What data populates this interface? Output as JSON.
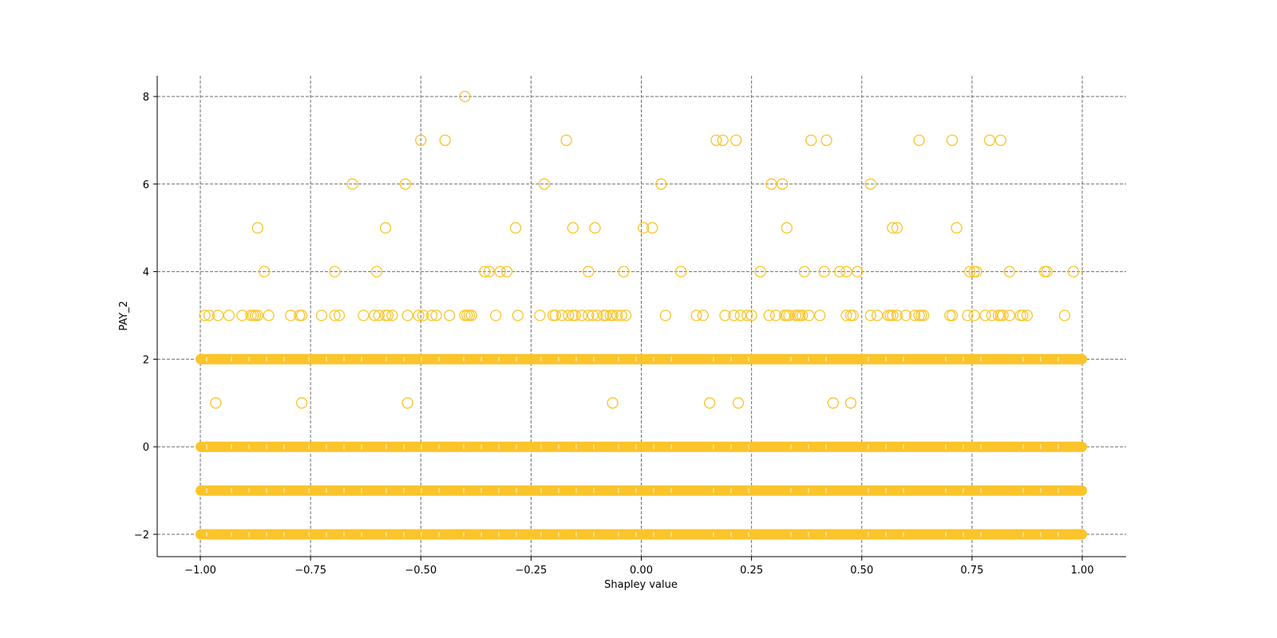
{
  "chart_data": {
    "type": "scatter",
    "title": "",
    "xlabel": "Shapley value",
    "ylabel": "PAY_2",
    "xlim": [
      -1.1,
      1.1
    ],
    "ylim": [
      -2.5,
      8.5
    ],
    "xticks": [
      -1.0,
      -0.75,
      -0.5,
      -0.25,
      0.0,
      0.25,
      0.5,
      0.75,
      1.0
    ],
    "xtick_labels": [
      "−1.00",
      "−0.75",
      "−0.50",
      "−0.25",
      "0.00",
      "0.25",
      "0.50",
      "0.75",
      "1.00"
    ],
    "yticks": [
      -2,
      0,
      2,
      4,
      6,
      8
    ],
    "ytick_labels": [
      "−2",
      "0",
      "2",
      "4",
      "6",
      "8"
    ],
    "grid": true,
    "grid_style": "dashed",
    "legend": null,
    "marker": {
      "shape": "hollow-circle",
      "color": "#FBC42A",
      "size": 14
    },
    "dense_bands": [
      {
        "y": -2,
        "x_range": [
          -1.0,
          1.0
        ],
        "note": "dense continuous band of points"
      },
      {
        "y": -1,
        "x_range": [
          -1.0,
          1.0
        ],
        "note": "dense continuous band of points"
      },
      {
        "y": 0,
        "x_range": [
          -1.0,
          1.0
        ],
        "note": "dense continuous band of points"
      },
      {
        "y": 2,
        "x_range": [
          -1.0,
          1.0
        ],
        "note": "dense continuous band of points"
      }
    ],
    "points": {
      "y8": [
        -0.4
      ],
      "y7": [
        -0.5,
        -0.445,
        -0.17,
        0.17,
        0.185,
        0.215,
        0.385,
        0.42,
        0.63,
        0.705,
        0.79,
        0.815
      ],
      "y6": [
        -0.655,
        -0.535,
        -0.22,
        0.045,
        0.295,
        0.32,
        0.52
      ],
      "y5": [
        -0.87,
        -0.58,
        -0.285,
        -0.155,
        -0.105,
        0.005,
        0.025,
        0.33,
        0.57,
        0.58,
        0.715
      ],
      "y4": [
        -0.855,
        -0.695,
        -0.6,
        -0.355,
        -0.345,
        -0.32,
        -0.305,
        -0.12,
        -0.04,
        0.09,
        0.27,
        0.37,
        0.415,
        0.45,
        0.465,
        0.49,
        0.745,
        0.755,
        0.76,
        0.835,
        0.915,
        0.92,
        0.98
      ],
      "y3": [
        -0.99,
        -0.98,
        -0.96,
        -0.935,
        -0.905,
        -0.885,
        -0.88,
        -0.875,
        -0.87,
        -0.845,
        -0.795,
        -0.775,
        -0.77,
        -0.725,
        -0.695,
        -0.685,
        -0.63,
        -0.605,
        -0.595,
        -0.58,
        -0.575,
        -0.565,
        -0.53,
        -0.505,
        -0.495,
        -0.475,
        -0.465,
        -0.435,
        -0.4,
        -0.395,
        -0.39,
        -0.385,
        -0.33,
        -0.28,
        -0.23,
        -0.2,
        -0.195,
        -0.18,
        -0.165,
        -0.155,
        -0.15,
        -0.135,
        -0.12,
        -0.11,
        -0.1,
        -0.085,
        -0.08,
        -0.07,
        -0.065,
        -0.055,
        -0.045,
        -0.035,
        0.055,
        0.125,
        0.14,
        0.19,
        0.21,
        0.225,
        0.24,
        0.25,
        0.29,
        0.305,
        0.325,
        0.33,
        0.335,
        0.35,
        0.355,
        0.36,
        0.365,
        0.38,
        0.405,
        0.465,
        0.475,
        0.48,
        0.52,
        0.535,
        0.56,
        0.565,
        0.57,
        0.58,
        0.6,
        0.62,
        0.63,
        0.635,
        0.64,
        0.7,
        0.705,
        0.74,
        0.755,
        0.78,
        0.795,
        0.81,
        0.815,
        0.82,
        0.835,
        0.86,
        0.865,
        0.875,
        0.96
      ],
      "y1": [
        -0.965,
        -0.77,
        -0.53,
        -0.065,
        0.155,
        0.22,
        0.435,
        0.475
      ]
    }
  }
}
